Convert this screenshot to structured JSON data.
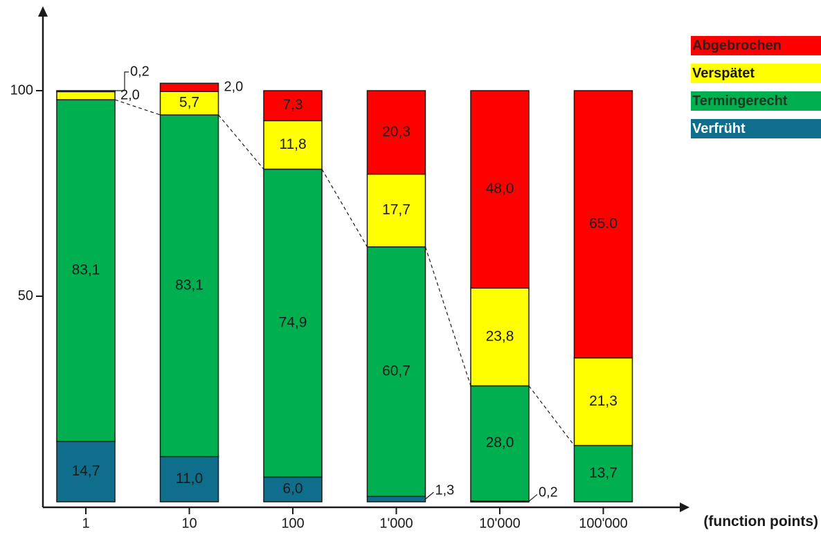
{
  "chart_data": {
    "type": "bar",
    "stacked": true,
    "categories": [
      "1",
      "10",
      "100",
      "1'000",
      "10'000",
      "100'000"
    ],
    "x_unit_label": "(function points)",
    "y_ticks": [
      "50",
      "100"
    ],
    "ylim": [
      0,
      100
    ],
    "series": [
      {
        "name": "Verfrüht",
        "color": "#0e6e8c",
        "values": [
          14.7,
          11.0,
          6.0,
          1.3,
          0.2,
          0
        ],
        "labels": [
          "14,7",
          "11,0",
          "6,0",
          "1,3",
          "0,2",
          ""
        ]
      },
      {
        "name": "Termingerecht",
        "color": "#00b050",
        "values": [
          83.1,
          83.1,
          74.9,
          60.7,
          28.0,
          13.7
        ],
        "labels": [
          "83,1",
          "83,1",
          "74,9",
          "60,7",
          "28,0",
          "13,7"
        ]
      },
      {
        "name": "Verspätet",
        "color": "#ffff00",
        "values": [
          2.0,
          5.7,
          11.8,
          17.7,
          23.8,
          21.3
        ],
        "labels": [
          "2,0",
          "5,7",
          "11,8",
          "17,7",
          "23,8",
          "21,3"
        ]
      },
      {
        "name": "Abgebrochen",
        "color": "#ff0000",
        "values": [
          0.2,
          2.0,
          7.3,
          20.3,
          48.0,
          65.0
        ],
        "labels": [
          "0,2",
          "2,0",
          "7,3",
          "20,3",
          "48,0",
          "65.0"
        ]
      }
    ],
    "legend_order": [
      "Abgebrochen",
      "Verspätet",
      "Termingerecht",
      "Verfrüht"
    ],
    "legend_position": "top-right",
    "trend_line": "dashed line connecting top of Termingerecht segments",
    "grid": false
  }
}
